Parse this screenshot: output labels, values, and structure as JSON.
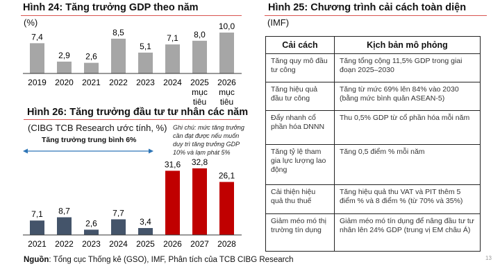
{
  "chart_data": [
    {
      "type": "bar",
      "title": "Hình 24: Tăng trưởng GDP theo năm",
      "unit_label": "(%)",
      "categories": [
        "2019",
        "2020",
        "2021",
        "2022",
        "2023",
        "2024",
        "2025\nmục\ntiêu",
        "2026\nmục\ntiêu"
      ],
      "values": [
        7.4,
        2.9,
        2.6,
        8.5,
        5.1,
        7.1,
        8.0,
        10.0
      ],
      "value_labels": [
        "7,4",
        "2,9",
        "2,6",
        "8,5",
        "5,1",
        "7,1",
        "8,0",
        "10,0"
      ],
      "bar_color": "#a6a6a6",
      "ylim": [
        0,
        10
      ]
    },
    {
      "type": "bar",
      "title": "Hình 26: Tăng trưởng đầu tư tư nhân các năm",
      "subtitle": "(CIBG TCB Research ước tính, %)",
      "categories": [
        "2021",
        "2022",
        "2023",
        "2024",
        "2025",
        "2026",
        "2027",
        "2028"
      ],
      "values": [
        7.1,
        8.7,
        2.6,
        7.7,
        3.4,
        31.6,
        32.8,
        26.1
      ],
      "value_labels": [
        "7,1",
        "8,7",
        "2,6",
        "7,7",
        "3,4",
        "31,6",
        "32,8",
        "26,1"
      ],
      "colors": [
        "#44546a",
        "#44546a",
        "#44546a",
        "#44546a",
        "#44546a",
        "#c00000",
        "#c00000",
        "#c00000"
      ],
      "annotation": "Tăng trưởng trung bình 6%",
      "note": "Ghi chú: mức tăng trưởng cần đạt được nếu muốn duy trì tăng trưởng GDP 10% và lạm phát 5%",
      "arrow_color": "#2e75b6",
      "ylim": [
        0,
        33
      ]
    }
  ],
  "table": {
    "title": "Hình 25: Chương trình cải cách toàn diện",
    "subtitle": "(IMF)",
    "headers": [
      "Cải cách",
      "Kịch bản mô phỏng"
    ],
    "rows": [
      [
        "Tăng quy mô đầu tư công",
        "Tăng tổng cộng 11,5% GDP trong giai đoạn 2025–2030"
      ],
      [
        "Tăng hiệu quả đầu tư công",
        "Tăng từ mức 69% lên 84% vào 2030 (bằng mức bình quân ASEAN-5)"
      ],
      [
        "Đẩy nhanh cổ phần hóa DNNN",
        "Thu 0,5% GDP từ cổ phần hóa mỗi năm"
      ],
      [
        "Tăng tỷ lệ tham gia lực lượng lao động",
        "Tăng 0,5 điểm % mỗi năm"
      ],
      [
        "Cải thiện hiệu quả thu thuế",
        "Tăng hiệu quả thu VAT và PIT thêm 5 điểm % và 8 điểm % (từ 70% và 35%)"
      ],
      [
        "Giảm méo mó thị trường tín dụng",
        "Giảm méo mó tín dụng để nâng đầu tư tư nhân lên 24% GDP (trung vị EM châu Á)"
      ]
    ]
  },
  "source": {
    "label": "Nguồn",
    "text": ": Tổng cục Thống kê (GSO), IMF, Phân tích của TCB CIBG Research"
  },
  "page_number": "13"
}
